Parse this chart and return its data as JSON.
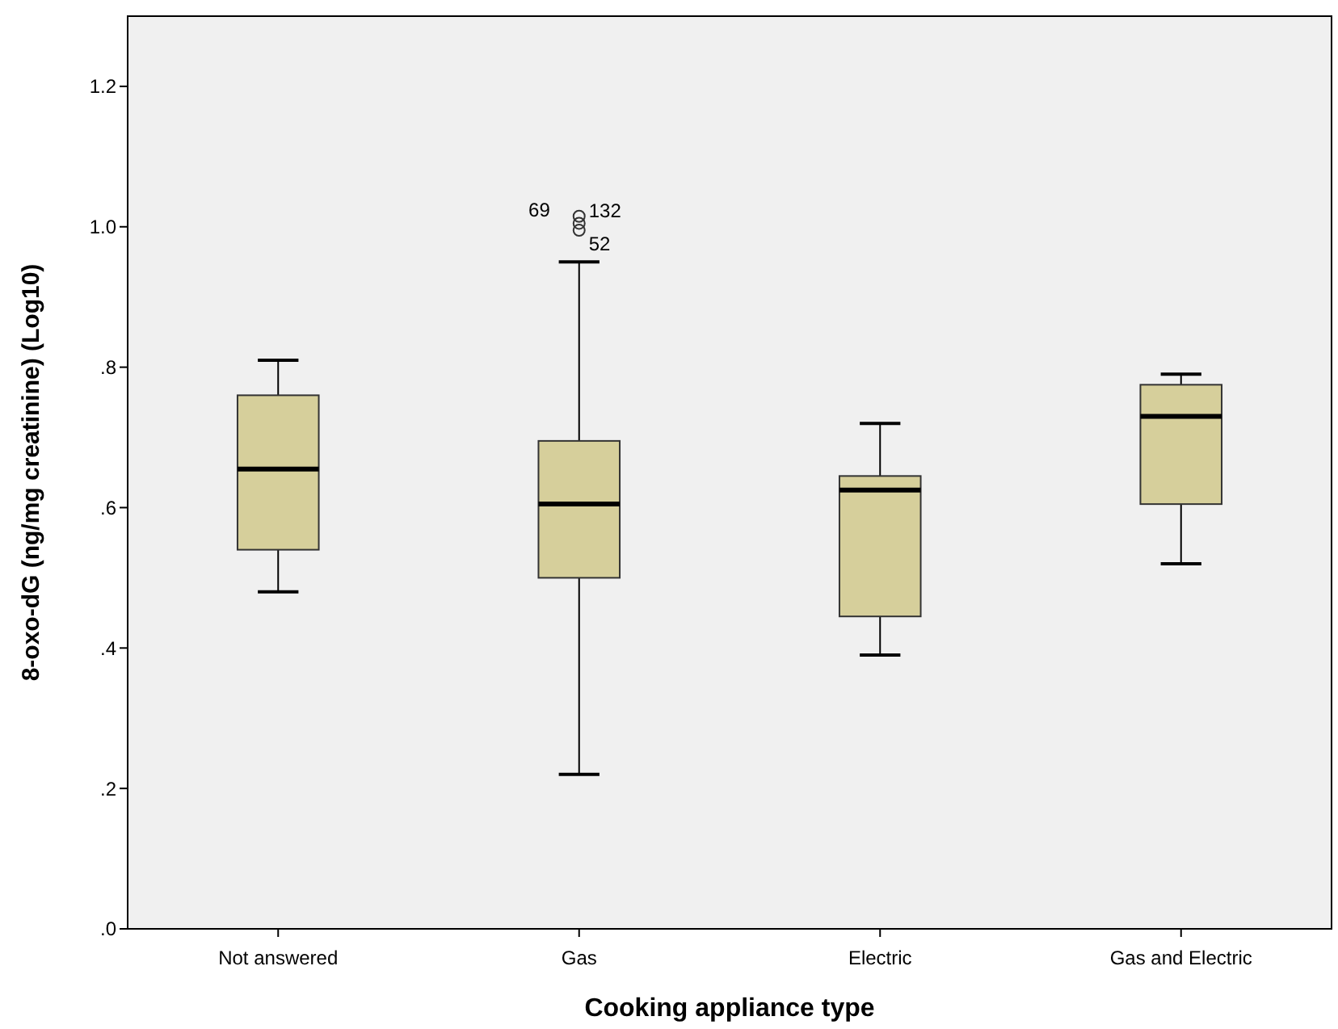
{
  "chart_data": {
    "type": "box",
    "xlabel": "Cooking appliance type",
    "ylabel": "8-oxo-dG (ng/mg creatinine) (Log10)",
    "categories": [
      "Not answered",
      "Gas",
      "Electric",
      "Gas and Electric"
    ],
    "series": [
      {
        "color": "#d6cf9b",
        "boxes": [
          {
            "low": 0.48,
            "q1": 0.54,
            "median": 0.655,
            "q3": 0.76,
            "high": 0.81
          },
          {
            "low": 0.22,
            "q1": 0.5,
            "median": 0.605,
            "q3": 0.695,
            "high": 0.95,
            "outliers": [
              1.015,
              1.005,
              0.995
            ]
          },
          {
            "low": 0.39,
            "q1": 0.445,
            "median": 0.625,
            "q3": 0.645,
            "high": 0.72
          },
          {
            "low": 0.52,
            "q1": 0.605,
            "median": 0.73,
            "q3": 0.775,
            "high": 0.79
          }
        ]
      }
    ],
    "ylim": [
      0,
      1.3
    ],
    "yticks": [
      {
        "value": 0,
        "label": ".0"
      },
      {
        "value": 0.2,
        "label": ".2"
      },
      {
        "value": 0.4,
        "label": ".4"
      },
      {
        "value": 0.6,
        "label": ".6"
      },
      {
        "value": 0.8,
        "label": ".8"
      },
      {
        "value": 1.0,
        "label": "1.0"
      },
      {
        "value": 1.2,
        "label": "1.2"
      }
    ],
    "annotations": [
      "69",
      "132",
      "52"
    ],
    "grid": false
  }
}
